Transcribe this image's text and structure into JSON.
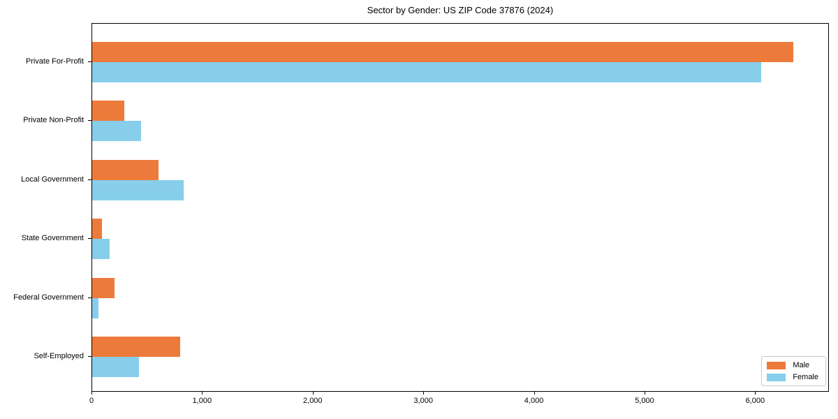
{
  "chart_data": {
    "type": "bar",
    "orientation": "horizontal",
    "title": "Sector by Gender: US ZIP Code 37876 (2024)",
    "categories": [
      "Private For-Profit",
      "Private Non-Profit",
      "Local Government",
      "State Government",
      "Federal Government",
      "Self-Employed"
    ],
    "series": [
      {
        "name": "Male",
        "color": "#EC7B3B",
        "values": [
          6350,
          290,
          600,
          90,
          200,
          800
        ]
      },
      {
        "name": "Female",
        "color": "#87CEEB",
        "values": [
          6060,
          445,
          830,
          160,
          55,
          425
        ]
      }
    ],
    "xlim": [
      0,
      6667
    ],
    "xticks": [
      0,
      1000,
      2000,
      3000,
      4000,
      5000,
      6000
    ],
    "xticklabels": [
      "0",
      "1,000",
      "2,000",
      "3,000",
      "4,000",
      "5,000",
      "6,000"
    ],
    "xlabel": "",
    "ylabel": "",
    "grid": false,
    "legend_position": "lower right"
  }
}
